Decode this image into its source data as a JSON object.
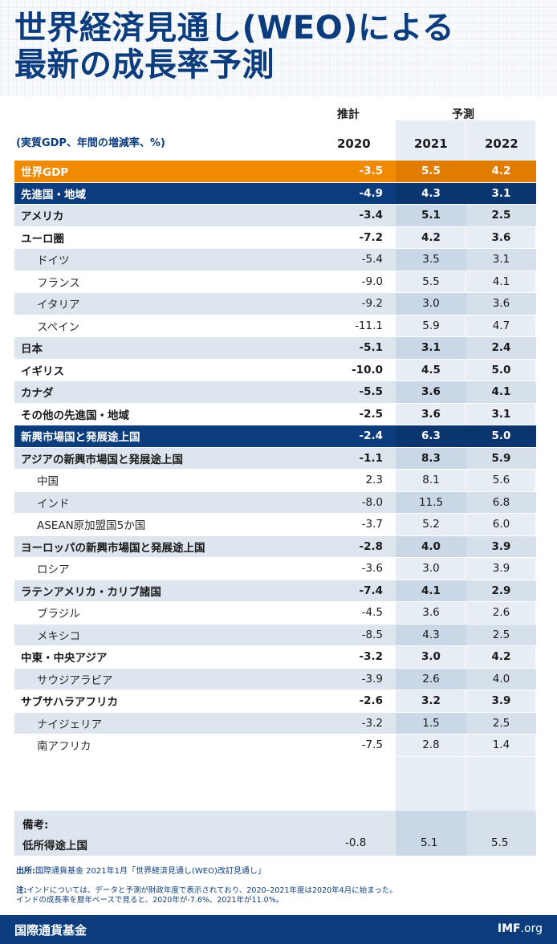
{
  "title": "世界経済見通し(WEO)による\n最新の成長率予測",
  "header": {
    "estimate_label": "推計",
    "forecast_label": "予測",
    "units": "(実質GDP、年間の増減率、%)",
    "years": [
      "2020",
      "2021",
      "2022"
    ]
  },
  "colors": {
    "brand_blue": "#0b3d7e",
    "world_orange": "#f08a00",
    "shade": "#dde6ef"
  },
  "chart_data": {
    "type": "table",
    "title": "世界経済見通し(WEO)による最新の成長率予測",
    "columns": [
      "2020",
      "2021",
      "2022"
    ],
    "rows": [
      {
        "name": "世界GDP",
        "values": [
          "-3.5",
          "5.5",
          "4.2"
        ],
        "style": "world"
      },
      {
        "name": "先進国・地域",
        "values": [
          "-4.9",
          "4.3",
          "3.1"
        ],
        "style": "group"
      },
      {
        "name": "アメリカ",
        "values": [
          "-3.4",
          "5.1",
          "2.5"
        ],
        "style": "bold-shade"
      },
      {
        "name": "ユーロ圏",
        "values": [
          "-7.2",
          "4.2",
          "3.6"
        ],
        "style": "bold"
      },
      {
        "name": "ドイツ",
        "values": [
          "-5.4",
          "3.5",
          "3.1"
        ],
        "style": "sub-shade"
      },
      {
        "name": "フランス",
        "values": [
          "-9.0",
          "5.5",
          "4.1"
        ],
        "style": "sub"
      },
      {
        "name": "イタリア",
        "values": [
          "-9.2",
          "3.0",
          "3.6"
        ],
        "style": "sub-shade"
      },
      {
        "name": "スペイン",
        "values": [
          "-11.1",
          "5.9",
          "4.7"
        ],
        "style": "sub"
      },
      {
        "name": "日本",
        "values": [
          "-5.1",
          "3.1",
          "2.4"
        ],
        "style": "bold-shade"
      },
      {
        "name": "イギリス",
        "values": [
          "-10.0",
          "4.5",
          "5.0"
        ],
        "style": "bold"
      },
      {
        "name": "カナダ",
        "values": [
          "-5.5",
          "3.6",
          "4.1"
        ],
        "style": "bold-shade"
      },
      {
        "name": "その他の先進国・地域",
        "values": [
          "-2.5",
          "3.6",
          "3.1"
        ],
        "style": "bold"
      },
      {
        "name": "新興市場国と発展途上国",
        "values": [
          "-2.4",
          "6.3",
          "5.0"
        ],
        "style": "group"
      },
      {
        "name": "アジアの新興市場国と発展途上国",
        "values": [
          "-1.1",
          "8.3",
          "5.9"
        ],
        "style": "bold-shade"
      },
      {
        "name": "中国",
        "values": [
          "2.3",
          "8.1",
          "5.6"
        ],
        "style": "sub"
      },
      {
        "name": "インド",
        "values": [
          "-8.0",
          "11.5",
          "6.8"
        ],
        "style": "sub-shade"
      },
      {
        "name": "ASEAN原加盟国5か国",
        "values": [
          "-3.7",
          "5.2",
          "6.0"
        ],
        "style": "sub"
      },
      {
        "name": "ヨーロッパの新興市場国と発展途上国",
        "values": [
          "-2.8",
          "4.0",
          "3.9"
        ],
        "style": "bold-shade"
      },
      {
        "name": "ロシア",
        "values": [
          "-3.6",
          "3.0",
          "3.9"
        ],
        "style": "sub"
      },
      {
        "name": "ラテンアメリカ・カリブ諸国",
        "values": [
          "-7.4",
          "4.1",
          "2.9"
        ],
        "style": "bold-shade"
      },
      {
        "name": "ブラジル",
        "values": [
          "-4.5",
          "3.6",
          "2.6"
        ],
        "style": "sub"
      },
      {
        "name": "メキシコ",
        "values": [
          "-8.5",
          "4.3",
          "2.5"
        ],
        "style": "sub-shade"
      },
      {
        "name": "中東・中央アジア",
        "values": [
          "-3.2",
          "3.0",
          "4.2"
        ],
        "style": "bold"
      },
      {
        "name": "サウジアラビア",
        "values": [
          "-3.9",
          "2.6",
          "4.0"
        ],
        "style": "sub-shade"
      },
      {
        "name": "サブサハラアフリカ",
        "values": [
          "-2.6",
          "3.2",
          "3.9"
        ],
        "style": "bold"
      },
      {
        "name": "ナイジェリア",
        "values": [
          "-3.2",
          "1.5",
          "2.5"
        ],
        "style": "sub-shade"
      },
      {
        "name": "南アフリカ",
        "values": [
          "-7.5",
          "2.8",
          "1.4"
        ],
        "style": "sub"
      }
    ],
    "memo": {
      "label": "備考:",
      "name": "低所得途上国",
      "values": [
        "-0.8",
        "5.1",
        "5.5"
      ]
    }
  },
  "source": {
    "label": "出所:",
    "text": "国際通貨基金 2021年1月「世界経済見通し(WEO)改訂見通し」"
  },
  "note": {
    "label": "注:",
    "text": "インドについては、データと予測が財政年度で表示されており、2020–2021年度は2020年4月に始まった。\nインドの成長率を暦年ベースで見ると、2020年が-7.6%、2021年が11.0%。"
  },
  "footer": {
    "org": "国際通貨基金",
    "site_bold": "IMF",
    "site_rest": ".org"
  }
}
